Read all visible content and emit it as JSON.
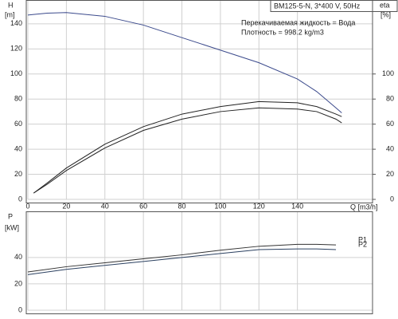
{
  "chart_data": [
    {
      "type": "line",
      "subtitle": "BM125-5-N, 3*400 V, 50Hz",
      "annotations": [
        "Перекачиваемая жидкость = Вода",
        "Плотность = 998.2 kg/m3"
      ],
      "ylabel": "H",
      "yunit": "[m]",
      "y2label": "eta",
      "y2unit": "[%]",
      "xlabel": "Q [m3/h]",
      "x": [
        0,
        3,
        10,
        20,
        40,
        60,
        80,
        100,
        120,
        140,
        150,
        160,
        163
      ],
      "series": [
        {
          "color": "#3b4a8c",
          "values": [
            147,
            147.5,
            148.5,
            149,
            146,
            139,
            129,
            119,
            109,
            96,
            86,
            73,
            69
          ]
        },
        {
          "color": "#222222",
          "axis": "y2",
          "values": [
            null,
            5,
            13,
            25,
            44,
            58,
            68,
            74,
            78,
            77,
            74,
            68,
            66
          ]
        },
        {
          "color": "#222222",
          "axis": "y2",
          "values": [
            null,
            5,
            12,
            23,
            41,
            55,
            64,
            70,
            73,
            72,
            70,
            64,
            61
          ]
        }
      ],
      "xlim": [
        0,
        179
      ],
      "xticks": [
        0,
        20,
        40,
        60,
        80,
        100,
        120,
        140
      ],
      "ylim": [
        0,
        159
      ],
      "yticks": [
        0,
        20,
        40,
        60,
        80,
        100,
        120,
        140
      ],
      "y2lim": [
        0,
        159
      ],
      "y2ticks": [
        0,
        20,
        40,
        60,
        80,
        100
      ],
      "grid": true,
      "xtick_labels": true
    },
    {
      "type": "line",
      "ylabel": "P",
      "yunit": "[kW]",
      "x": [
        0,
        20,
        40,
        60,
        80,
        100,
        120,
        140,
        150,
        160
      ],
      "series": [
        {
          "name": "P1",
          "color": "#333333",
          "values": [
            29,
            33,
            36,
            39,
            42,
            45.5,
            48.5,
            50,
            50,
            49.5
          ]
        },
        {
          "name": "P2",
          "color": "#2b4060",
          "values": [
            27,
            31,
            34,
            37,
            40,
            43,
            46,
            46.5,
            46.5,
            46
          ]
        }
      ],
      "xlim": [
        0,
        179
      ],
      "xticks": [
        0,
        20,
        40,
        60,
        80,
        100,
        120,
        140
      ],
      "ylim": [
        0,
        75
      ],
      "yticks": [
        0,
        20,
        40
      ],
      "grid": true,
      "xtick_labels": false
    }
  ]
}
